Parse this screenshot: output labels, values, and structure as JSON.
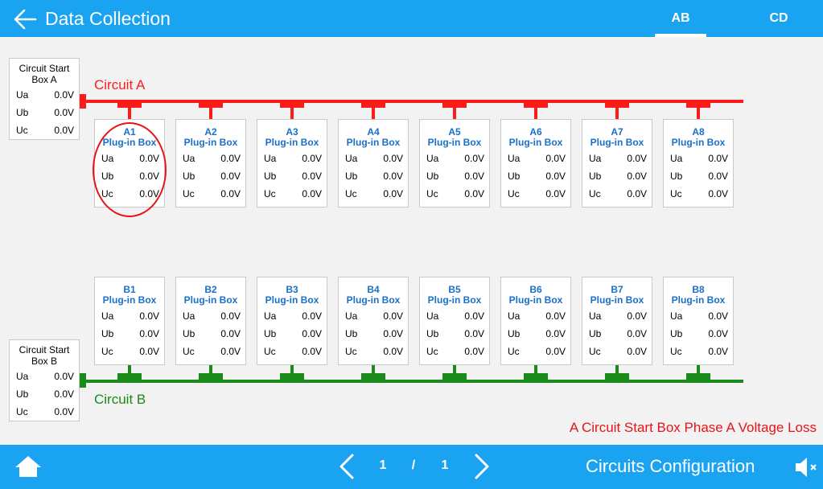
{
  "header": {
    "title": "Data Collection",
    "tabs": [
      {
        "label": "AB",
        "active": true
      },
      {
        "label": "CD",
        "active": false
      }
    ]
  },
  "circuit_a": {
    "label": "Circuit A",
    "start_box": {
      "title": "Circuit Start Box A",
      "rows": [
        {
          "phase": "Ua",
          "value": "0.0V"
        },
        {
          "phase": "Ub",
          "value": "0.0V"
        },
        {
          "phase": "Uc",
          "value": "0.0V"
        }
      ]
    },
    "boxes": [
      {
        "id": "A1",
        "subtitle": "Plug-in Box",
        "ua": "0.0V",
        "ub": "0.0V",
        "uc": "0.0V"
      },
      {
        "id": "A2",
        "subtitle": "Plug-in Box",
        "ua": "0.0V",
        "ub": "0.0V",
        "uc": "0.0V"
      },
      {
        "id": "A3",
        "subtitle": "Plug-in Box",
        "ua": "0.0V",
        "ub": "0.0V",
        "uc": "0.0V"
      },
      {
        "id": "A4",
        "subtitle": "Plug-in Box",
        "ua": "0.0V",
        "ub": "0.0V",
        "uc": "0.0V"
      },
      {
        "id": "A5",
        "subtitle": "Plug-in Box",
        "ua": "0.0V",
        "ub": "0.0V",
        "uc": "0.0V"
      },
      {
        "id": "A6",
        "subtitle": "Plug-in Box",
        "ua": "0.0V",
        "ub": "0.0V",
        "uc": "0.0V"
      },
      {
        "id": "A7",
        "subtitle": "Plug-in Box",
        "ua": "0.0V",
        "ub": "0.0V",
        "uc": "0.0V"
      },
      {
        "id": "A8",
        "subtitle": "Plug-in Box",
        "ua": "0.0V",
        "ub": "0.0V",
        "uc": "0.0V"
      }
    ]
  },
  "circuit_b": {
    "label": "Circuit B",
    "start_box": {
      "title": "Circuit Start Box B",
      "rows": [
        {
          "phase": "Ua",
          "value": "0.0V"
        },
        {
          "phase": "Ub",
          "value": "0.0V"
        },
        {
          "phase": "Uc",
          "value": "0.0V"
        }
      ]
    },
    "boxes": [
      {
        "id": "B1",
        "subtitle": "Plug-in Box",
        "ua": "0.0V",
        "ub": "0.0V",
        "uc": "0.0V"
      },
      {
        "id": "B2",
        "subtitle": "Plug-in Box",
        "ua": "0.0V",
        "ub": "0.0V",
        "uc": "0.0V"
      },
      {
        "id": "B3",
        "subtitle": "Plug-in Box",
        "ua": "0.0V",
        "ub": "0.0V",
        "uc": "0.0V"
      },
      {
        "id": "B4",
        "subtitle": "Plug-in Box",
        "ua": "0.0V",
        "ub": "0.0V",
        "uc": "0.0V"
      },
      {
        "id": "B5",
        "subtitle": "Plug-in Box",
        "ua": "0.0V",
        "ub": "0.0V",
        "uc": "0.0V"
      },
      {
        "id": "B6",
        "subtitle": "Plug-in Box",
        "ua": "0.0V",
        "ub": "0.0V",
        "uc": "0.0V"
      },
      {
        "id": "B7",
        "subtitle": "Plug-in Box",
        "ua": "0.0V",
        "ub": "0.0V",
        "uc": "0.0V"
      },
      {
        "id": "B8",
        "subtitle": "Plug-in Box",
        "ua": "0.0V",
        "ub": "0.0V",
        "uc": "0.0V"
      }
    ]
  },
  "phase_labels": {
    "ua": "Ua",
    "ub": "Ub",
    "uc": "Uc"
  },
  "alarm_message": "A Circuit Start Box Phase A Voltage Loss",
  "footer": {
    "page_current": "1",
    "page_separator": "/",
    "page_total": "1",
    "section_title": "Circuits Configuration"
  },
  "colors": {
    "bar": "#1aa3f0",
    "circuit_a": "#ff1a1a",
    "circuit_b": "#1a8a1a",
    "box_title": "#1a6fc8",
    "alarm": "#e8141a"
  },
  "icons": {
    "back": "back-arrow-icon",
    "home": "home-icon",
    "prev": "chevron-left-icon",
    "next": "chevron-right-icon",
    "mute": "speaker-muted-icon"
  }
}
